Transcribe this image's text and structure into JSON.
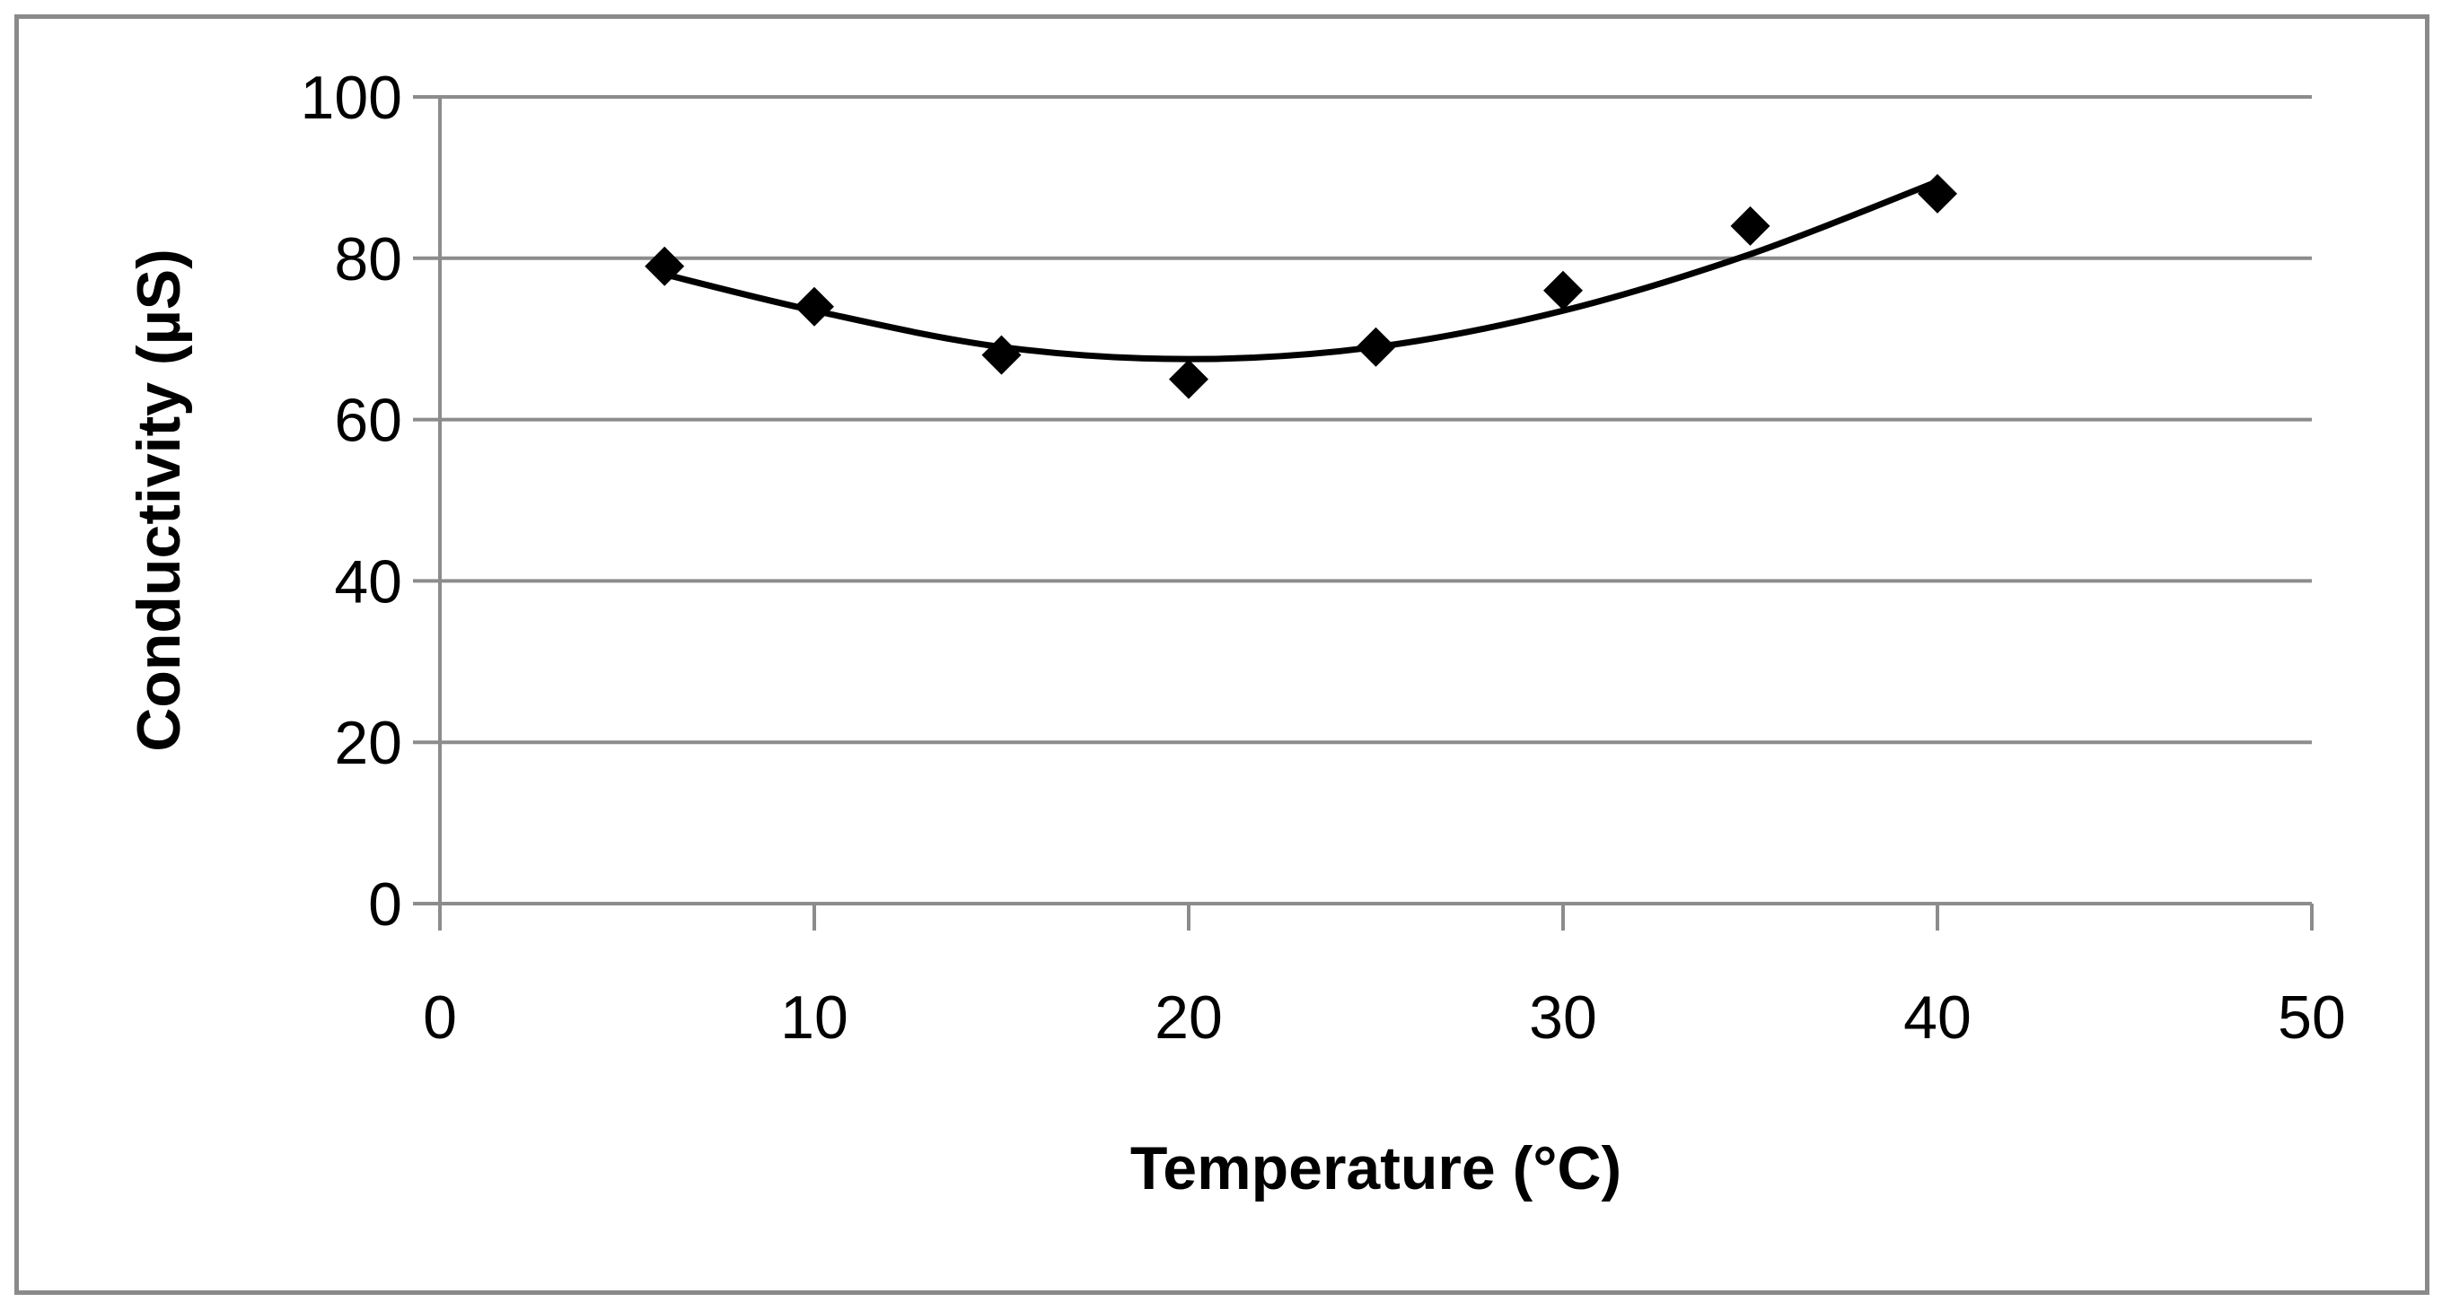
{
  "chart_data": {
    "type": "scatter",
    "title": "",
    "xlabel": "Temperature (°C)",
    "ylabel": "Conductivity (µS)",
    "xlim": [
      0,
      50
    ],
    "ylim": [
      0,
      100
    ],
    "xticks": [
      0,
      10,
      20,
      30,
      40,
      50
    ],
    "yticks": [
      0,
      20,
      40,
      60,
      80,
      100
    ],
    "grid": "horizontal",
    "legend": "none",
    "series": [
      {
        "name": "Conductivity",
        "marker": "diamond",
        "color": "#000000",
        "x": [
          6,
          10,
          15,
          20,
          25,
          30,
          35,
          40
        ],
        "y": [
          79,
          74,
          68,
          65,
          69,
          76,
          84,
          88
        ]
      }
    ],
    "trendline": {
      "type": "polynomial",
      "order": 2,
      "color": "#000000",
      "x": [
        6,
        10,
        15,
        20,
        25,
        30,
        35,
        40
      ],
      "y": [
        78,
        73.5,
        69,
        67.5,
        69,
        73.5,
        80.5,
        89.5
      ]
    }
  }
}
